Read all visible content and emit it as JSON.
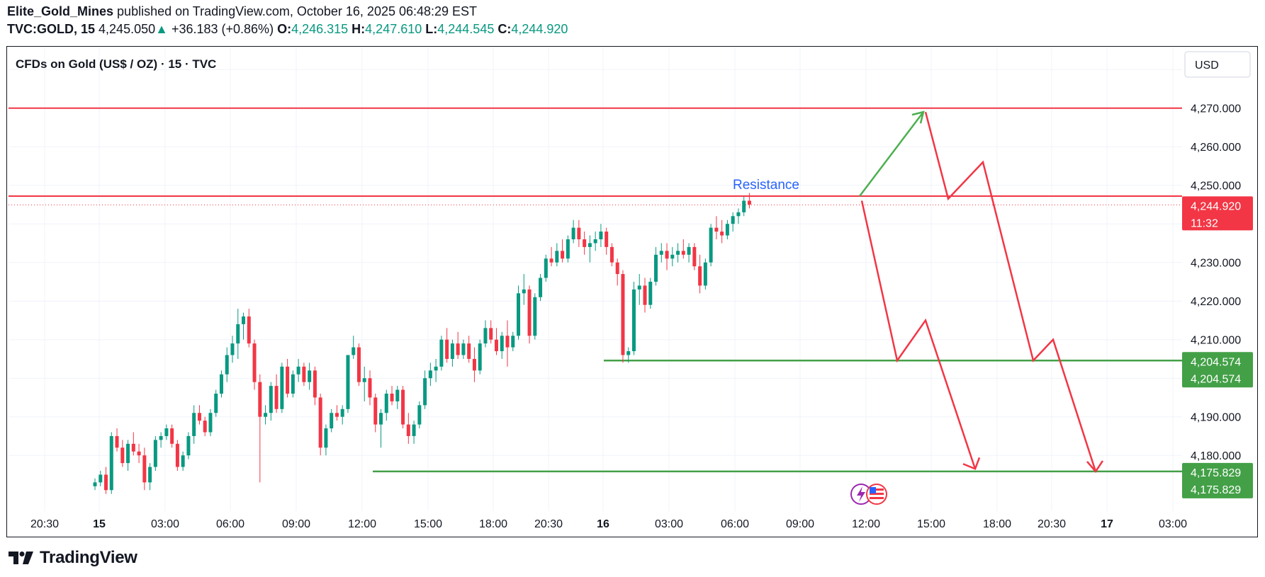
{
  "header": {
    "author": "Elite_Gold_Mines",
    "published_text": " published on TradingView.com, October 16, 2025 06:48:29 EST",
    "symbol": "TVC:GOLD, 15",
    "last": "4,245.050",
    "change_arrow": "▲",
    "change": "+36.183 (+0.86%)",
    "o_label": "O:",
    "o": "4,246.315",
    "h_label": "H:",
    "h": "4,247.610",
    "l_label": "L:",
    "l": "4,244.545",
    "c_label": "C:",
    "c": "4,244.920"
  },
  "chart_title": "CFDs on Gold (US$ / OZ) · 15 · TVC",
  "currency_button": "USD",
  "countdown": "11:32",
  "footer": {
    "brand": "TradingView",
    "logo_icon": "tradingview-logo-icon"
  },
  "colors": {
    "up": "#089981",
    "down": "#F23645",
    "resistance": "#F23645",
    "support": "#43A047",
    "target_arrow": "#4CAF50",
    "annotation_text": "#2962FF"
  },
  "chart_data": {
    "type": "candlestick",
    "y_ticks": [
      "4,270.000",
      "4,260.000",
      "4,250.000",
      "4,230.000",
      "4,220.000",
      "4,210.000",
      "4,190.000",
      "4,180.000"
    ],
    "ylim": [
      4169,
      4284
    ],
    "x_ticks": [
      "20:30",
      "15",
      "03:00",
      "06:00",
      "09:00",
      "12:00",
      "15:00",
      "18:00",
      "20:30",
      "16",
      "03:00",
      "06:00",
      "09:00",
      "12:00",
      "15:00",
      "18:00",
      "20:30",
      "17",
      "03:00"
    ],
    "grid": true,
    "candles": [
      [
        4172,
        4174,
        4171,
        4173
      ],
      [
        4173,
        4176,
        4172,
        4175
      ],
      [
        4175,
        4177,
        4170,
        4171
      ],
      [
        4171,
        4186,
        4170,
        4185
      ],
      [
        4185,
        4187,
        4181,
        4182
      ],
      [
        4182,
        4184,
        4177,
        4178
      ],
      [
        4178,
        4184,
        4176,
        4183
      ],
      [
        4183,
        4186,
        4180,
        4181
      ],
      [
        4181,
        4183,
        4178,
        4180
      ],
      [
        4180,
        4182,
        4171,
        4173
      ],
      [
        4173,
        4178,
        4171,
        4177
      ],
      [
        4177,
        4185,
        4176,
        4184
      ],
      [
        4184,
        4186,
        4182,
        4185
      ],
      [
        4185,
        4188,
        4184,
        4187
      ],
      [
        4187,
        4188,
        4182,
        4183
      ],
      [
        4183,
        4184,
        4176,
        4177
      ],
      [
        4177,
        4181,
        4176,
        4180
      ],
      [
        4180,
        4186,
        4179,
        4185
      ],
      [
        4185,
        4193,
        4183,
        4191
      ],
      [
        4191,
        4193,
        4188,
        4189
      ],
      [
        4189,
        4190,
        4185,
        4186
      ],
      [
        4186,
        4192,
        4185,
        4191
      ],
      [
        4191,
        4197,
        4190,
        4196
      ],
      [
        4196,
        4202,
        4195,
        4201
      ],
      [
        4201,
        4208,
        4199,
        4206
      ],
      [
        4206,
        4211,
        4204,
        4209
      ],
      [
        4209,
        4218,
        4205,
        4214
      ],
      [
        4214,
        4217,
        4210,
        4216
      ],
      [
        4216,
        4218,
        4208,
        4209
      ],
      [
        4209,
        4210,
        4197,
        4199
      ],
      [
        4199,
        4201,
        4173,
        4190
      ],
      [
        4190,
        4193,
        4188,
        4191
      ],
      [
        4191,
        4199,
        4189,
        4198
      ],
      [
        4198,
        4201,
        4191,
        4192
      ],
      [
        4192,
        4204,
        4191,
        4203
      ],
      [
        4203,
        4205,
        4195,
        4196
      ],
      [
        4196,
        4202,
        4195,
        4201
      ],
      [
        4201,
        4205,
        4199,
        4203
      ],
      [
        4203,
        4204,
        4198,
        4199
      ],
      [
        4199,
        4204,
        4197,
        4202
      ],
      [
        4202,
        4203,
        4193,
        4195
      ],
      [
        4195,
        4196,
        4180,
        4182
      ],
      [
        4182,
        4188,
        4180,
        4187
      ],
      [
        4187,
        4192,
        4186,
        4191
      ],
      [
        4191,
        4193,
        4189,
        4190
      ],
      [
        4190,
        4193,
        4188,
        4192
      ],
      [
        4192,
        4206,
        4191,
        4206
      ],
      [
        4206,
        4211,
        4205,
        4208
      ],
      [
        4208,
        4209,
        4198,
        4199
      ],
      [
        4199,
        4203,
        4194,
        4200
      ],
      [
        4200,
        4202,
        4193,
        4195
      ],
      [
        4195,
        4196,
        4186,
        4188
      ],
      [
        4188,
        4192,
        4182,
        4191
      ],
      [
        4191,
        4197,
        4189,
        4196
      ],
      [
        4196,
        4198,
        4193,
        4194
      ],
      [
        4194,
        4198,
        4192,
        4197
      ],
      [
        4197,
        4198,
        4187,
        4188
      ],
      [
        4188,
        4191,
        4183,
        4185
      ],
      [
        4185,
        4189,
        4183,
        4188
      ],
      [
        4188,
        4194,
        4187,
        4193
      ],
      [
        4193,
        4202,
        4192,
        4200
      ],
      [
        4200,
        4204,
        4198,
        4202
      ],
      [
        4202,
        4205,
        4199,
        4203
      ],
      [
        4203,
        4211,
        4202,
        4210
      ],
      [
        4210,
        4213,
        4204,
        4205
      ],
      [
        4205,
        4210,
        4203,
        4209
      ],
      [
        4209,
        4212,
        4205,
        4206
      ],
      [
        4206,
        4210,
        4205,
        4209
      ],
      [
        4209,
        4211,
        4204,
        4205
      ],
      [
        4205,
        4208,
        4199,
        4202
      ],
      [
        4202,
        4210,
        4201,
        4209
      ],
      [
        4209,
        4215,
        4208,
        4213
      ],
      [
        4213,
        4215,
        4209,
        4210
      ],
      [
        4210,
        4213,
        4206,
        4207
      ],
      [
        4207,
        4212,
        4205,
        4211
      ],
      [
        4211,
        4215,
        4203,
        4208
      ],
      [
        4208,
        4212,
        4207,
        4211
      ],
      [
        4211,
        4224,
        4210,
        4222
      ],
      [
        4222,
        4227,
        4219,
        4223
      ],
      [
        4223,
        4224,
        4209,
        4211
      ],
      [
        4211,
        4222,
        4210,
        4221
      ],
      [
        4221,
        4227,
        4220,
        4226
      ],
      [
        4226,
        4232,
        4225,
        4231
      ],
      [
        4231,
        4234,
        4229,
        4230
      ],
      [
        4230,
        4235,
        4229,
        4233
      ],
      [
        4233,
        4236,
        4230,
        4231
      ],
      [
        4231,
        4237,
        4230,
        4236
      ],
      [
        4236,
        4241,
        4235,
        4239
      ],
      [
        4239,
        4241,
        4234,
        4236
      ],
      [
        4236,
        4238,
        4232,
        4234
      ],
      [
        4234,
        4237,
        4230,
        4235
      ],
      [
        4235,
        4238,
        4233,
        4236
      ],
      [
        4236,
        4240,
        4234,
        4238
      ],
      [
        4238,
        4239,
        4232,
        4234
      ],
      [
        4234,
        4235,
        4229,
        4230
      ],
      [
        4230,
        4231,
        4224,
        4227
      ],
      [
        4227,
        4228,
        4204,
        4206
      ],
      [
        4206,
        4208,
        4204,
        4207
      ],
      [
        4207,
        4225,
        4206,
        4223
      ],
      [
        4223,
        4227,
        4219,
        4224
      ],
      [
        4224,
        4226,
        4217,
        4219
      ],
      [
        4219,
        4226,
        4218,
        4225
      ],
      [
        4225,
        4234,
        4224,
        4232
      ],
      [
        4232,
        4235,
        4230,
        4233
      ],
      [
        4233,
        4235,
        4228,
        4231
      ],
      [
        4231,
        4234,
        4229,
        4232
      ],
      [
        4232,
        4235,
        4230,
        4233
      ],
      [
        4233,
        4236,
        4231,
        4232
      ],
      [
        4232,
        4235,
        4230,
        4234
      ],
      [
        4234,
        4235,
        4228,
        4229
      ],
      [
        4229,
        4232,
        4222,
        4224
      ],
      [
        4224,
        4231,
        4223,
        4230
      ],
      [
        4230,
        4240,
        4229,
        4239
      ],
      [
        4239,
        4242,
        4236,
        4238
      ],
      [
        4238,
        4241,
        4235,
        4237
      ],
      [
        4237,
        4241,
        4236,
        4240
      ],
      [
        4240,
        4243,
        4238,
        4242
      ],
      [
        4242,
        4244,
        4240,
        4243
      ],
      [
        4243,
        4247,
        4242,
        4246
      ],
      [
        4246,
        4248,
        4244,
        4245
      ]
    ],
    "resistance_label": "Resistance",
    "level_labels": [
      "4,244.920",
      "4,204.574",
      "4,204.574",
      "4,175.829",
      "4,175.829"
    ],
    "levels": {
      "resistance_top": 4270.0,
      "resistance": 4247.2,
      "last_price": 4244.92,
      "support_1": 4204.574,
      "support_2": 4175.829
    },
    "projection_up": [
      [
        4247.2,
        4269.0
      ]
    ],
    "projection_paths": {
      "right": [
        4269.0,
        4246.5,
        4256.0,
        4204.574,
        4210.0,
        4175.829
      ],
      "lower": [
        4246.0,
        4204.574,
        4215.0,
        4176.5
      ]
    }
  }
}
